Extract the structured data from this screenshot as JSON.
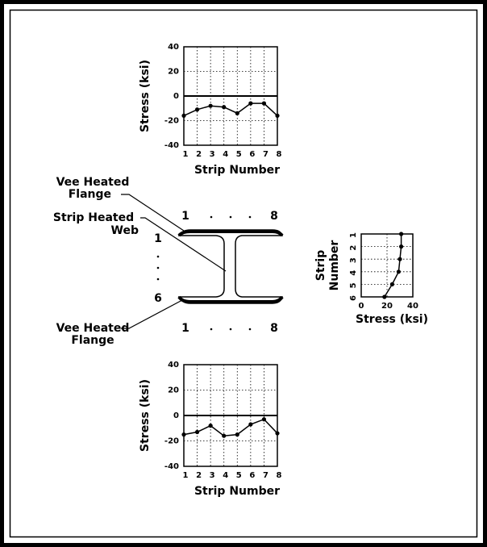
{
  "chart_data": [
    {
      "type": "line",
      "orientation": "vertical",
      "categories": [
        "1",
        "2",
        "3",
        "4",
        "5",
        "6",
        "7",
        "8"
      ],
      "values": [
        -16,
        -11,
        -8,
        -9,
        -14,
        -6,
        -6,
        -16
      ],
      "color": "#000000",
      "ylim": [
        -40,
        40
      ],
      "yticks": [
        -40,
        -20,
        0,
        20,
        40
      ],
      "grid": true,
      "zero_line": true,
      "x_label": "Strip Number",
      "y_label": [
        "Stress (ksi)"
      ]
    },
    {
      "type": "line",
      "orientation": "horizontal",
      "categories": [
        "1",
        "2",
        "3",
        "4",
        "5",
        "6"
      ],
      "values": [
        31,
        31,
        30,
        29,
        24,
        18
      ],
      "color": "#000000",
      "xlim": [
        0,
        40
      ],
      "xticks": [
        0,
        20,
        40
      ],
      "grid": true,
      "zero_line": false,
      "x_label": "Stress (ksi)",
      "y_label": [
        "Strip",
        "Number"
      ]
    },
    {
      "type": "line",
      "orientation": "vertical",
      "categories": [
        "1",
        "2",
        "3",
        "4",
        "5",
        "6",
        "7",
        "8"
      ],
      "values": [
        -15,
        -13,
        -8,
        -16,
        -15,
        -7,
        -3,
        -14
      ],
      "color": "#000000",
      "ylim": [
        -40,
        40
      ],
      "yticks": [
        -40,
        -20,
        0,
        20,
        40
      ],
      "grid": true,
      "zero_line": true,
      "x_label": "Strip Number",
      "y_label": [
        "Stress (ksi)"
      ]
    }
  ],
  "diagram": {
    "top_flange_label": [
      "Vee Heated",
      "Flange"
    ],
    "web_label": [
      "Strip Heated",
      "Web"
    ],
    "bottom_flange_label": [
      "Vee Heated",
      "Flange"
    ],
    "top_strip_first": "1",
    "top_strip_last": "8",
    "web_strip_first": "1",
    "web_strip_last": "6",
    "bottom_strip_first": "1",
    "bottom_strip_last": "8"
  }
}
